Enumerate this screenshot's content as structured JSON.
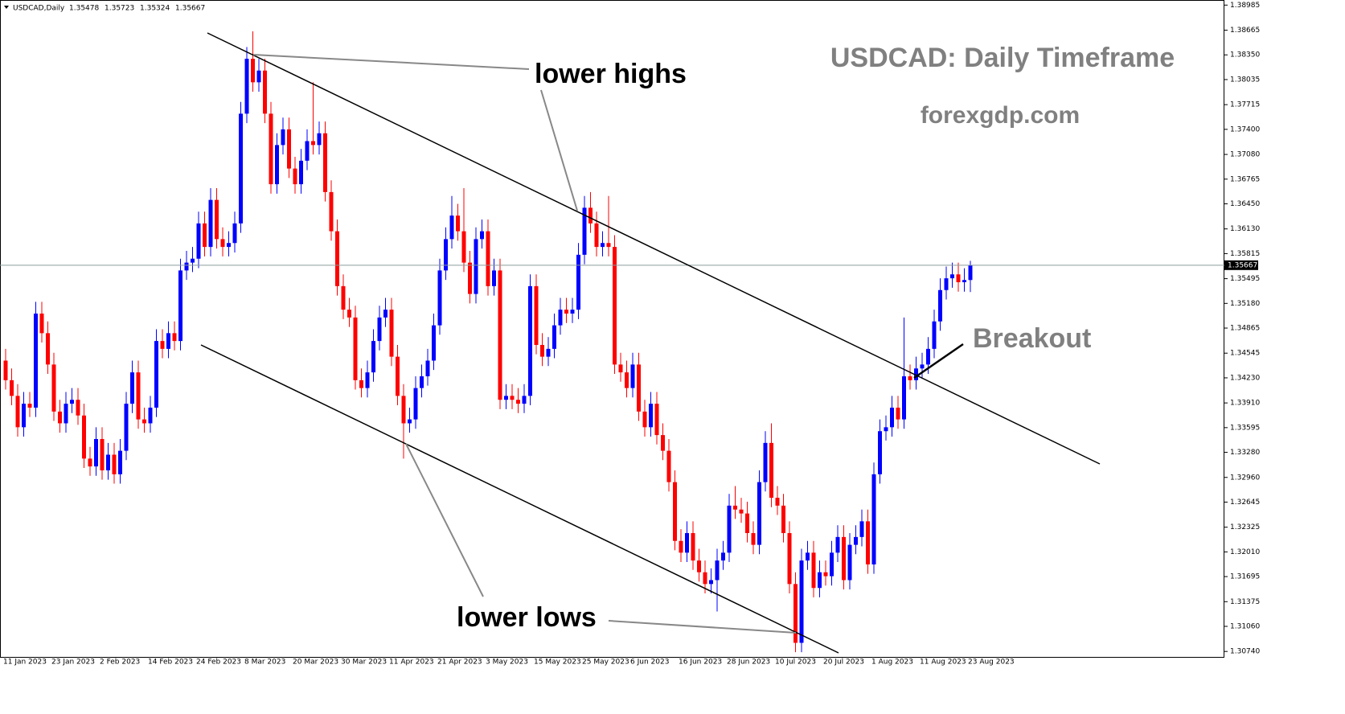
{
  "chart_data": {
    "type": "candlestick",
    "symbol": "USDCAD,Daily",
    "title": "USDCAD: Daily Timeframe",
    "subtitle": "forexgdp.com",
    "annotations": [
      "lower highs",
      "lower lows",
      "Breakout"
    ],
    "up_color": "#0000ff",
    "down_color": "#ff0000",
    "categories": [
      "11 Jan 2023",
      null,
      null,
      null,
      null,
      null,
      null,
      null,
      "23 Jan 2023",
      null,
      null,
      null,
      null,
      null,
      null,
      null,
      "2 Feb 2023",
      null,
      null,
      null,
      null,
      null,
      null,
      null,
      "14 Feb 2023",
      null,
      null,
      null,
      null,
      null,
      null,
      null,
      "24 Feb 2023",
      null,
      null,
      null,
      null,
      null,
      null,
      null,
      "8 Mar 2023",
      null,
      null,
      null,
      null,
      null,
      null,
      null,
      "20 Mar 2023",
      null,
      null,
      null,
      null,
      null,
      null,
      null,
      "30 Mar 2023",
      null,
      null,
      null,
      null,
      null,
      null,
      null,
      "11 Apr 2023",
      null,
      null,
      null,
      null,
      null,
      null,
      null,
      "21 Apr 2023",
      null,
      null,
      null,
      null,
      null,
      null,
      null,
      "3 May 2023",
      null,
      null,
      null,
      null,
      null,
      null,
      null,
      "15 May 2023",
      null,
      null,
      null,
      null,
      null,
      null,
      null,
      "25 May 2023",
      null,
      null,
      null,
      null,
      null,
      null,
      null,
      "6 Jun 2023",
      null,
      null,
      null,
      null,
      null,
      null,
      null,
      "16 Jun 2023",
      null,
      null,
      null,
      null,
      null,
      null,
      null,
      "28 Jun 2023",
      null,
      null,
      null,
      null,
      null,
      null,
      null,
      "10 Jul 2023",
      null,
      null,
      null,
      null,
      null,
      null,
      null,
      "20 Jul 2023",
      null,
      null,
      null,
      null,
      null,
      null,
      null,
      "1 Aug 2023",
      null,
      null,
      null,
      null,
      null,
      null,
      null,
      "11 Aug 2023",
      null,
      null,
      null,
      null,
      null,
      null,
      null,
      "23 Aug 2023"
    ],
    "open": [
      1.3445,
      1.342,
      1.34,
      1.336,
      1.339,
      1.3385,
      1.3505,
      1.348,
      1.344,
      1.338,
      1.3365,
      1.339,
      1.3395,
      1.3375,
      1.332,
      1.331,
      1.3345,
      1.3305,
      1.3325,
      1.33,
      1.333,
      1.339,
      1.343,
      1.337,
      1.3365,
      1.3385,
      1.347,
      1.346,
      1.348,
      1.347,
      1.356,
      1.357,
      1.3575,
      1.362,
      1.359,
      1.365,
      1.36,
      1.359,
      1.3595,
      1.362,
      1.376,
      1.383,
      1.38,
      1.3815,
      1.376,
      1.367,
      1.372,
      1.374,
      1.369,
      1.367,
      1.37,
      1.3725,
      1.372,
      1.3735,
      1.366,
      1.361,
      1.354,
      1.351,
      1.35,
      1.342,
      1.341,
      1.343,
      1.347,
      1.35,
      1.351,
      1.345,
      1.34,
      1.3365,
      1.337,
      1.341,
      1.3425,
      1.3445,
      1.349,
      1.356,
      1.36,
      1.363,
      1.361,
      1.357,
      1.353,
      1.36,
      1.361,
      1.354,
      1.356,
      1.3395,
      1.34,
      1.3395,
      1.339,
      1.34,
      1.354,
      1.3465,
      1.345,
      1.346,
      1.349,
      1.351,
      1.3505,
      1.351,
      1.358,
      1.364,
      1.362,
      1.359,
      1.3595,
      1.359,
      1.344,
      1.343,
      1.341,
      1.344,
      1.338,
      1.336,
      1.339,
      1.335,
      1.333,
      1.329,
      1.3215,
      1.32,
      1.3225,
      1.319,
      1.3175,
      1.316,
      1.3165,
      1.319,
      1.32,
      1.326,
      1.3255,
      1.325,
      1.3225,
      1.321,
      1.329,
      1.334,
      1.327,
      1.326,
      1.3225,
      1.316,
      1.3085,
      1.319,
      1.32,
      1.3155,
      1.3175,
      1.317,
      1.32,
      1.322,
      1.3165,
      1.321,
      1.322,
      1.324,
      1.3185,
      1.33,
      1.3355,
      1.336,
      1.3385,
      1.337,
      1.3425,
      1.342,
      1.3435,
      1.344,
      1.346,
      1.3495,
      1.3535,
      1.355,
      1.3555,
      1.3545,
      1.35478
    ],
    "high": [
      1.346,
      1.3435,
      1.3415,
      1.3405,
      1.3405,
      1.352,
      1.352,
      1.3495,
      1.3455,
      1.3395,
      1.3405,
      1.341,
      1.341,
      1.339,
      1.3335,
      1.336,
      1.336,
      1.334,
      1.334,
      1.3345,
      1.3405,
      1.3445,
      1.3445,
      1.3385,
      1.34,
      1.3485,
      1.3485,
      1.3495,
      1.3495,
      1.3575,
      1.3585,
      1.359,
      1.3635,
      1.3635,
      1.3665,
      1.3665,
      1.3615,
      1.361,
      1.3635,
      1.3775,
      1.3845,
      1.3865,
      1.383,
      1.383,
      1.3775,
      1.3735,
      1.3755,
      1.3755,
      1.3705,
      1.3715,
      1.374,
      1.38,
      1.375,
      1.375,
      1.3675,
      1.3625,
      1.3555,
      1.3525,
      1.3515,
      1.3435,
      1.3445,
      1.3485,
      1.3515,
      1.3525,
      1.3525,
      1.3465,
      1.3415,
      1.3385,
      1.3425,
      1.344,
      1.346,
      1.3505,
      1.3575,
      1.3615,
      1.3655,
      1.3645,
      1.3665,
      1.3585,
      1.3615,
      1.3625,
      1.3625,
      1.3575,
      1.3575,
      1.3415,
      1.3415,
      1.341,
      1.3415,
      1.3555,
      1.3555,
      1.348,
      1.3475,
      1.3505,
      1.3525,
      1.3525,
      1.3525,
      1.3595,
      1.3655,
      1.366,
      1.3635,
      1.361,
      1.3655,
      1.3605,
      1.3455,
      1.3445,
      1.3455,
      1.3455,
      1.3395,
      1.3405,
      1.3405,
      1.3365,
      1.3345,
      1.3305,
      1.323,
      1.324,
      1.324,
      1.3205,
      1.319,
      1.318,
      1.3205,
      1.3215,
      1.3275,
      1.3285,
      1.327,
      1.3265,
      1.324,
      1.3305,
      1.3355,
      1.3365,
      1.3285,
      1.3275,
      1.324,
      1.3175,
      1.3205,
      1.3215,
      1.3215,
      1.319,
      1.319,
      1.3215,
      1.3235,
      1.3235,
      1.3225,
      1.3235,
      1.3255,
      1.3255,
      1.3315,
      1.337,
      1.3375,
      1.34,
      1.34,
      1.35,
      1.344,
      1.345,
      1.3455,
      1.3475,
      1.351,
      1.355,
      1.3565,
      1.357,
      1.357,
      1.35628,
      1.35723
    ],
    "low": [
      1.3408,
      1.3388,
      1.3348,
      1.3348,
      1.3373,
      1.3373,
      1.3468,
      1.3428,
      1.3368,
      1.3353,
      1.3353,
      1.3378,
      1.3363,
      1.3308,
      1.3298,
      1.3298,
      1.3293,
      1.3293,
      1.3288,
      1.3288,
      1.3318,
      1.3378,
      1.3358,
      1.3353,
      1.3353,
      1.3373,
      1.3448,
      1.3448,
      1.3458,
      1.3458,
      1.3548,
      1.3558,
      1.3563,
      1.3578,
      1.3578,
      1.3588,
      1.3578,
      1.3578,
      1.3583,
      1.3608,
      1.3748,
      1.3788,
      1.3788,
      1.3748,
      1.3658,
      1.3658,
      1.3708,
      1.3678,
      1.3658,
      1.3658,
      1.3688,
      1.3708,
      1.3708,
      1.3648,
      1.3598,
      1.3528,
      1.3498,
      1.3488,
      1.3408,
      1.3398,
      1.3398,
      1.3418,
      1.3458,
      1.3488,
      1.3438,
      1.3388,
      1.332,
      1.3353,
      1.3358,
      1.3398,
      1.3413,
      1.3433,
      1.3478,
      1.3548,
      1.3588,
      1.3598,
      1.3558,
      1.3518,
      1.3518,
      1.3588,
      1.3528,
      1.3528,
      1.3383,
      1.3383,
      1.3383,
      1.3378,
      1.3378,
      1.3388,
      1.3453,
      1.3438,
      1.3438,
      1.3448,
      1.3478,
      1.3493,
      1.3493,
      1.3498,
      1.3568,
      1.3608,
      1.3578,
      1.3578,
      1.3578,
      1.3428,
      1.3418,
      1.3398,
      1.3398,
      1.3368,
      1.3348,
      1.3348,
      1.3338,
      1.3318,
      1.3278,
      1.3203,
      1.3188,
      1.3188,
      1.3178,
      1.3163,
      1.3148,
      1.3148,
      1.3125,
      1.3178,
      1.3188,
      1.3243,
      1.3238,
      1.3213,
      1.3198,
      1.3198,
      1.3278,
      1.3258,
      1.3248,
      1.3213,
      1.3148,
      1.3073,
      1.3073,
      1.3178,
      1.3143,
      1.3143,
      1.3158,
      1.3158,
      1.3188,
      1.3153,
      1.3153,
      1.3198,
      1.3208,
      1.3173,
      1.3173,
      1.3288,
      1.3343,
      1.3348,
      1.3358,
      1.3358,
      1.3408,
      1.3408,
      1.3423,
      1.3428,
      1.3448,
      1.3483,
      1.3523,
      1.3538,
      1.3533,
      1.3533,
      1.35324
    ],
    "close": [
      1.342,
      1.34,
      1.336,
      1.339,
      1.3385,
      1.3505,
      1.348,
      1.344,
      1.338,
      1.3365,
      1.339,
      1.3395,
      1.3375,
      1.332,
      1.331,
      1.3345,
      1.3305,
      1.3325,
      1.33,
      1.333,
      1.339,
      1.343,
      1.337,
      1.3365,
      1.3385,
      1.347,
      1.346,
      1.348,
      1.347,
      1.356,
      1.357,
      1.3575,
      1.362,
      1.359,
      1.365,
      1.36,
      1.359,
      1.3595,
      1.362,
      1.376,
      1.383,
      1.38,
      1.3815,
      1.376,
      1.367,
      1.372,
      1.374,
      1.369,
      1.367,
      1.37,
      1.3725,
      1.372,
      1.3735,
      1.366,
      1.361,
      1.354,
      1.351,
      1.35,
      1.342,
      1.341,
      1.343,
      1.347,
      1.35,
      1.351,
      1.345,
      1.34,
      1.3365,
      1.337,
      1.341,
      1.3425,
      1.3445,
      1.349,
      1.356,
      1.36,
      1.363,
      1.361,
      1.357,
      1.353,
      1.36,
      1.361,
      1.354,
      1.356,
      1.3395,
      1.34,
      1.3395,
      1.339,
      1.34,
      1.354,
      1.3465,
      1.345,
      1.346,
      1.349,
      1.351,
      1.3505,
      1.351,
      1.358,
      1.364,
      1.362,
      1.359,
      1.3595,
      1.359,
      1.344,
      1.343,
      1.341,
      1.344,
      1.338,
      1.336,
      1.339,
      1.335,
      1.333,
      1.329,
      1.3215,
      1.32,
      1.3225,
      1.319,
      1.3175,
      1.316,
      1.3165,
      1.319,
      1.32,
      1.326,
      1.3255,
      1.325,
      1.3225,
      1.321,
      1.329,
      1.334,
      1.327,
      1.326,
      1.3225,
      1.316,
      1.3085,
      1.319,
      1.32,
      1.3155,
      1.3175,
      1.317,
      1.32,
      1.322,
      1.3165,
      1.321,
      1.322,
      1.324,
      1.3185,
      1.33,
      1.3355,
      1.336,
      1.3385,
      1.337,
      1.3425,
      1.342,
      1.3435,
      1.344,
      1.346,
      1.3495,
      1.3535,
      1.355,
      1.3555,
      1.3545,
      1.35478,
      1.35667
    ],
    "ylim": [
      1.3066,
      1.3905
    ],
    "yticks": [
      1.38985,
      1.38665,
      {
        "value": 1.3835,
        "label": "1.38350"
      },
      1.38035,
      1.37715,
      {
        "value": 1.374,
        "label": "1.37400"
      },
      {
        "value": 1.3708,
        "label": "1.37080"
      },
      1.36765,
      {
        "value": 1.3645,
        "label": "1.36450"
      },
      {
        "value": 1.3613,
        "label": "1.36130"
      },
      1.35815,
      1.35495,
      {
        "value": 1.3518,
        "label": "1.35180"
      },
      1.34865,
      1.34545,
      {
        "value": 1.3423,
        "label": "1.34230"
      },
      {
        "value": 1.3391,
        "label": "1.33910"
      },
      1.33595,
      {
        "value": 1.3328,
        "label": "1.33280"
      },
      {
        "value": 1.3296,
        "label": "1.32960"
      },
      1.32645,
      1.32325,
      {
        "value": 1.3201,
        "label": "1.32010"
      },
      1.31695,
      1.31375,
      {
        "value": 1.3106,
        "label": "1.31060"
      },
      {
        "value": 1.3074,
        "label": "1.30740"
      }
    ],
    "grid": false
  }
}
